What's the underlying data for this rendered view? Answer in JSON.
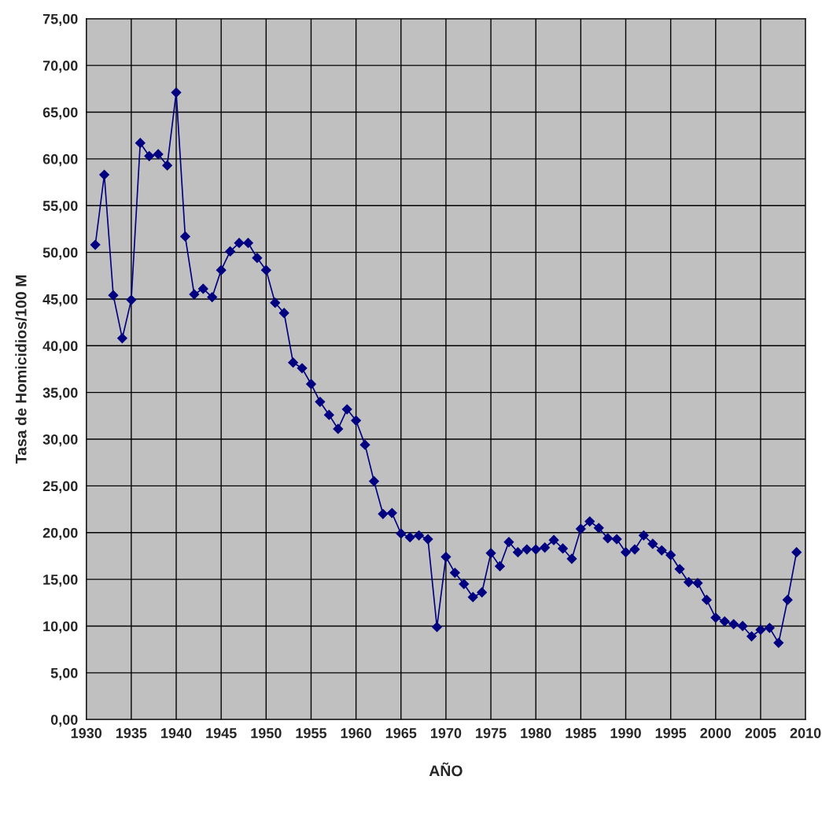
{
  "chart_data": {
    "type": "line",
    "xlabel": "AÑO",
    "ylabel": "Tasa de Homicidios/100 M",
    "x": [
      1931,
      1932,
      1933,
      1934,
      1935,
      1936,
      1937,
      1938,
      1939,
      1940,
      1941,
      1942,
      1943,
      1944,
      1945,
      1946,
      1947,
      1948,
      1949,
      1950,
      1951,
      1952,
      1953,
      1954,
      1955,
      1956,
      1957,
      1958,
      1959,
      1960,
      1961,
      1962,
      1963,
      1964,
      1965,
      1966,
      1967,
      1968,
      1969,
      1970,
      1971,
      1972,
      1973,
      1974,
      1975,
      1976,
      1977,
      1978,
      1979,
      1980,
      1981,
      1982,
      1983,
      1984,
      1985,
      1986,
      1987,
      1988,
      1989,
      1990,
      1991,
      1992,
      1993,
      1994,
      1995,
      1996,
      1997,
      1998,
      1999,
      2000,
      2001,
      2002,
      2003,
      2004,
      2005,
      2006,
      2007,
      2008,
      2009
    ],
    "series": [
      {
        "color": "#000080",
        "values": [
          50.8,
          58.3,
          45.4,
          40.8,
          44.9,
          61.7,
          60.3,
          60.5,
          59.3,
          67.1,
          51.7,
          45.5,
          46.1,
          45.2,
          48.1,
          50.1,
          51.0,
          51.0,
          49.4,
          48.1,
          44.6,
          43.5,
          38.2,
          37.6,
          35.9,
          34.0,
          32.6,
          31.1,
          33.2,
          32.0,
          29.4,
          25.5,
          22.0,
          22.1,
          19.9,
          19.5,
          19.7,
          19.3,
          9.9,
          17.4,
          15.7,
          14.5,
          13.1,
          13.6,
          17.8,
          16.4,
          19.0,
          17.9,
          18.2,
          18.2,
          18.4,
          19.2,
          18.3,
          17.2,
          20.4,
          21.2,
          20.5,
          19.4,
          19.3,
          17.9,
          18.2,
          19.7,
          18.8,
          18.1,
          17.6,
          16.1,
          14.7,
          14.6,
          12.8,
          10.9,
          10.5,
          10.2,
          10.0,
          8.9,
          9.6,
          9.8,
          8.2,
          12.8,
          17.9
        ]
      }
    ],
    "xlim": [
      1930,
      2010
    ],
    "xticks": [
      1930,
      1935,
      1940,
      1945,
      1950,
      1955,
      1960,
      1965,
      1970,
      1975,
      1980,
      1985,
      1990,
      1995,
      2000,
      2005,
      2010
    ],
    "ylim": [
      0,
      75
    ],
    "yticks": [
      {
        "value": 0,
        "label": "0,00"
      },
      {
        "value": 5,
        "label": "5,00"
      },
      {
        "value": 10,
        "label": "10,00"
      },
      {
        "value": 15,
        "label": "15,00"
      },
      {
        "value": 20,
        "label": "20,00"
      },
      {
        "value": 25,
        "label": "25,00"
      },
      {
        "value": 30,
        "label": "30,00"
      },
      {
        "value": 35,
        "label": "35,00"
      },
      {
        "value": 40,
        "label": "40,00"
      },
      {
        "value": 45,
        "label": "45,00"
      },
      {
        "value": 50,
        "label": "50,00"
      },
      {
        "value": 55,
        "label": "55,00"
      },
      {
        "value": 60,
        "label": "60,00"
      },
      {
        "value": 65,
        "label": "65,00"
      },
      {
        "value": 70,
        "label": "70,00"
      },
      {
        "value": 75,
        "label": "75,00"
      }
    ],
    "grid": true,
    "marker": "diamond",
    "line_style": "solid"
  }
}
